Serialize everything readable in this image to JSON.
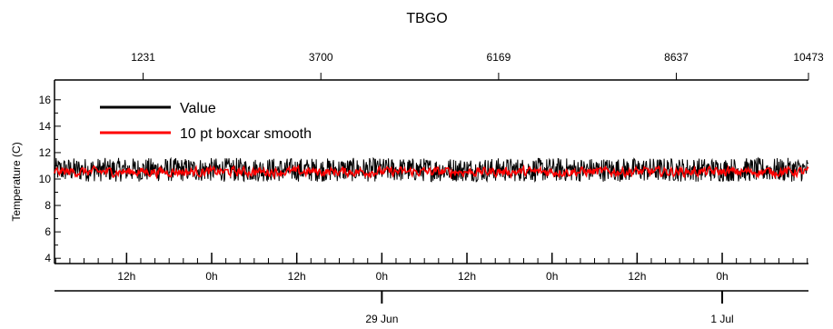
{
  "chart_data": {
    "type": "line",
    "title": "TBGO",
    "ylabel": "Temperature (C)",
    "xlabel": "",
    "ylim": [
      3.6,
      17.5
    ],
    "y_ticks": [
      4,
      6,
      8,
      10,
      12,
      14,
      16
    ],
    "y_tick_labels": [
      "4",
      "6",
      "8",
      "10",
      "12",
      "14",
      "16"
    ],
    "top_axis": {
      "range": [
        0,
        10473
      ],
      "ticks": [
        1231,
        3700,
        6169,
        8637,
        10473
      ],
      "tick_labels": [
        "1231",
        "3700",
        "6169",
        "8637",
        "10473"
      ]
    },
    "time_axis": {
      "start": "2024-06-27T01:50",
      "end": "2024-07-01T12:10",
      "hour_ticks": [
        "2024-06-27T12:00",
        "2024-06-28T00:00",
        "2024-06-28T12:00",
        "2024-06-29T00:00",
        "2024-06-29T12:00",
        "2024-06-30T00:00",
        "2024-06-30T12:00",
        "2024-07-01T00:00"
      ],
      "hour_tick_labels": [
        "12h",
        "0h",
        "12h",
        "0h",
        "12h",
        "0h",
        "12h",
        "0h"
      ],
      "date_ticks": [
        "2024-06-29T00:00",
        "2024-07-01T00:00"
      ],
      "date_tick_labels": [
        "29 Jun",
        "1 Jul"
      ]
    },
    "legend_position": "top-left",
    "grid": false,
    "series": [
      {
        "name": "Value",
        "color": "#000000",
        "mean": 10.6,
        "band": [
          9.8,
          11.6
        ],
        "n_points": 10473
      },
      {
        "name": "10 pt boxcar smooth",
        "color": "#ff0000",
        "mean": 10.55,
        "band": [
          10.0,
          11.2
        ],
        "n_points": 10473
      }
    ]
  }
}
